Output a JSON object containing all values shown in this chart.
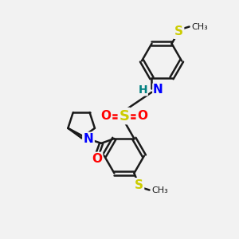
{
  "bg_color": "#f2f2f2",
  "bond_color": "#1a1a1a",
  "bond_width": 1.8,
  "atom_colors": {
    "S": "#cccc00",
    "N": "#0000ff",
    "O": "#ff0000",
    "H": "#008080",
    "C": "#1a1a1a"
  },
  "fs": 10,
  "fig_width": 3.0,
  "fig_height": 3.0,
  "dpi": 100
}
